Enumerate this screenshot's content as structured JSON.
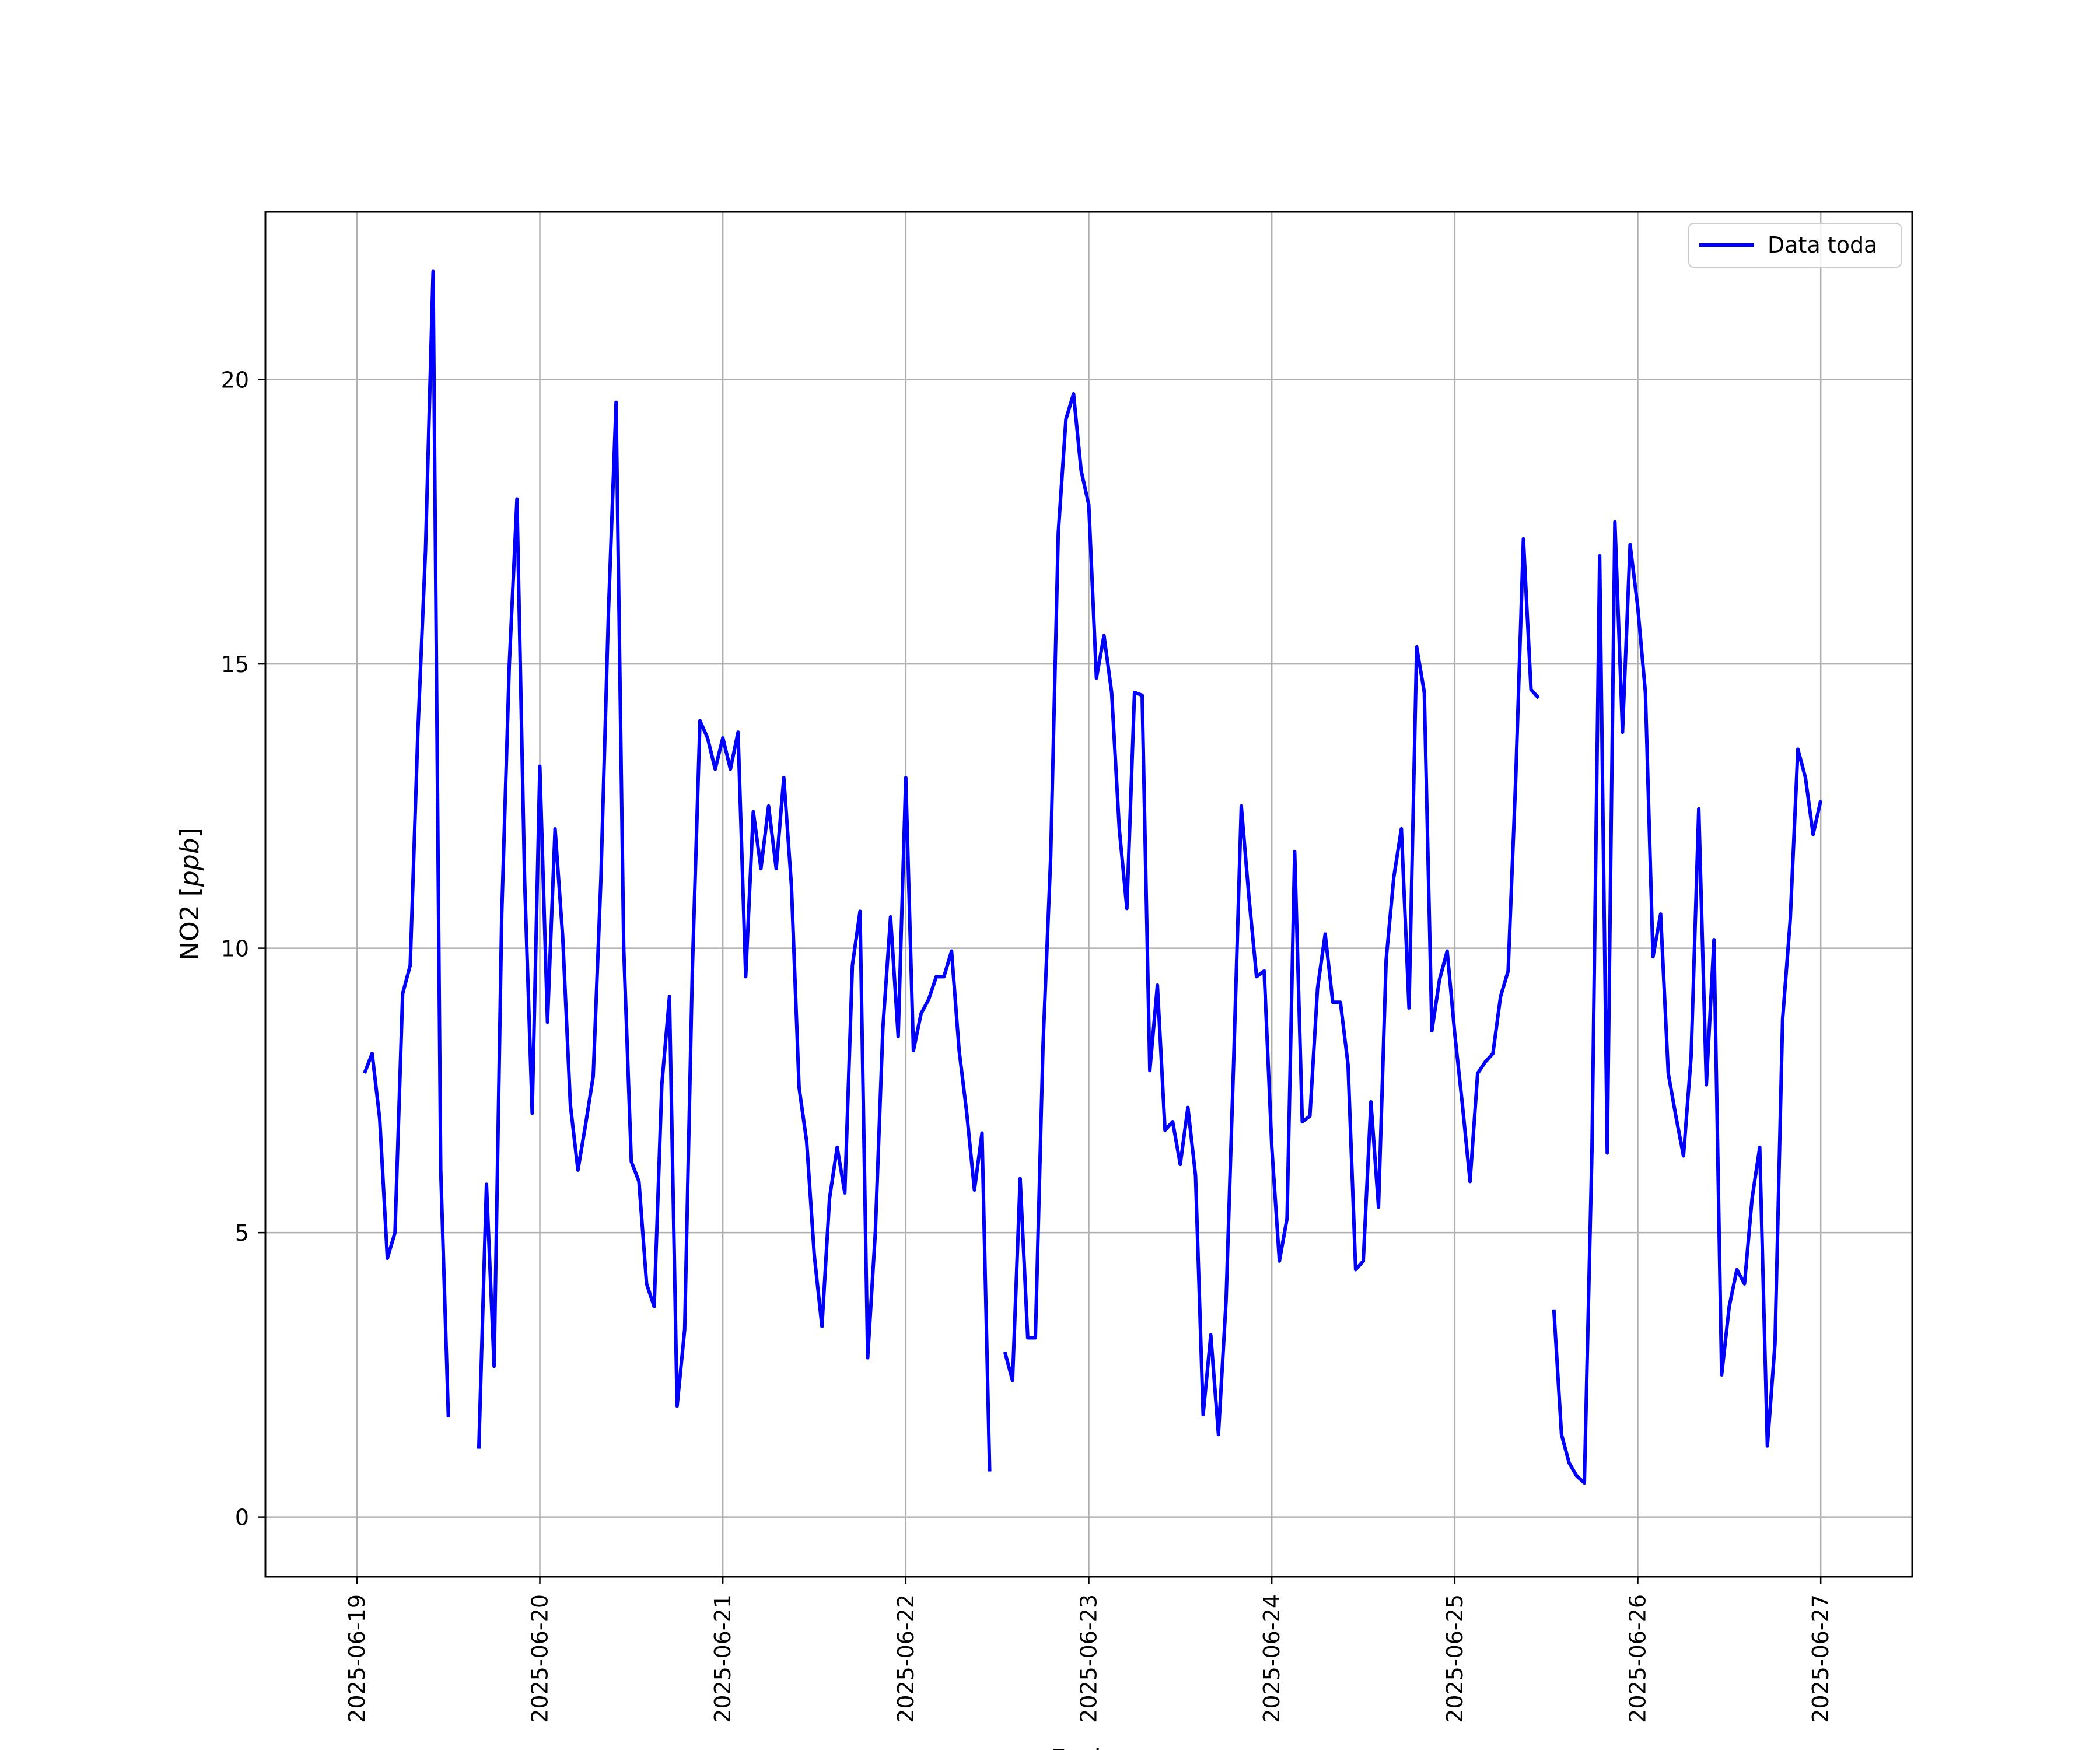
{
  "chart_data": {
    "type": "line",
    "xlabel": "Fecha",
    "ylabel_plain": "NO2 [",
    "ylabel_italic": "ppb",
    "ylabel_close": "]",
    "xlim": [
      "2025-06-18T12:00",
      "2025-06-27T12:00"
    ],
    "ylim": [
      -1.05,
      22.95
    ],
    "x_ticks": [
      "2025-06-19",
      "2025-06-20",
      "2025-06-21",
      "2025-06-22",
      "2025-06-23",
      "2025-06-24",
      "2025-06-25",
      "2025-06-26",
      "2025-06-27"
    ],
    "y_ticks": [
      0,
      5,
      10,
      15,
      20
    ],
    "grid": true,
    "legend_position": "top-right",
    "colors": {
      "line": "#0000ff",
      "grid": "#b0b0b0",
      "frame": "#000000"
    },
    "series": [
      {
        "name": "Data toda",
        "points": [
          [
            "2025-06-19T01:00",
            7.8
          ],
          [
            "2025-06-19T02:00",
            8.15
          ],
          [
            "2025-06-19T03:00",
            7.0
          ],
          [
            "2025-06-19T04:00",
            4.55
          ],
          [
            "2025-06-19T05:00",
            5.0
          ],
          [
            "2025-06-19T06:00",
            9.2
          ],
          [
            "2025-06-19T07:00",
            9.7
          ],
          [
            "2025-06-19T08:00",
            13.8
          ],
          [
            "2025-06-19T09:00",
            17.0
          ],
          [
            "2025-06-19T10:00",
            21.9
          ],
          [
            "2025-06-19T11:00",
            6.1
          ],
          [
            "2025-06-19T12:00",
            1.75
          ],
          [
            "2025-06-19T13:00",
            null
          ],
          [
            "2025-06-19T14:00",
            null
          ],
          [
            "2025-06-19T15:00",
            null
          ],
          [
            "2025-06-19T16:00",
            1.2
          ],
          [
            "2025-06-19T17:00",
            5.85
          ],
          [
            "2025-06-19T18:00",
            2.65
          ],
          [
            "2025-06-19T19:00",
            10.6
          ],
          [
            "2025-06-19T20:00",
            15.0
          ],
          [
            "2025-06-19T21:00",
            17.9
          ],
          [
            "2025-06-19T22:00",
            11.2
          ],
          [
            "2025-06-19T23:00",
            7.1
          ],
          [
            "2025-06-20T00:00",
            13.2
          ],
          [
            "2025-06-20T01:00",
            8.7
          ],
          [
            "2025-06-20T02:00",
            12.1
          ],
          [
            "2025-06-20T03:00",
            10.2
          ],
          [
            "2025-06-20T04:00",
            7.25
          ],
          [
            "2025-06-20T05:00",
            6.1
          ],
          [
            "2025-06-20T06:00",
            6.9
          ],
          [
            "2025-06-20T07:00",
            7.75
          ],
          [
            "2025-06-20T08:00",
            11.2
          ],
          [
            "2025-06-20T09:00",
            15.9
          ],
          [
            "2025-06-20T10:00",
            19.6
          ],
          [
            "2025-06-20T11:00",
            10.0
          ],
          [
            "2025-06-20T12:00",
            6.25
          ],
          [
            "2025-06-20T13:00",
            5.9
          ],
          [
            "2025-06-20T14:00",
            4.1
          ],
          [
            "2025-06-20T15:00",
            3.7
          ],
          [
            "2025-06-20T16:00",
            7.6
          ],
          [
            "2025-06-20T17:00",
            9.15
          ],
          [
            "2025-06-20T18:00",
            1.95
          ],
          [
            "2025-06-20T19:00",
            3.3
          ],
          [
            "2025-06-20T20:00",
            9.6
          ],
          [
            "2025-06-20T21:00",
            14.0
          ],
          [
            "2025-06-20T22:00",
            13.7
          ],
          [
            "2025-06-20T23:00",
            13.15
          ],
          [
            "2025-06-21T00:00",
            13.7
          ],
          [
            "2025-06-21T01:00",
            13.15
          ],
          [
            "2025-06-21T02:00",
            13.8
          ],
          [
            "2025-06-21T03:00",
            9.5
          ],
          [
            "2025-06-21T04:00",
            12.4
          ],
          [
            "2025-06-21T05:00",
            11.4
          ],
          [
            "2025-06-21T06:00",
            12.5
          ],
          [
            "2025-06-21T07:00",
            11.4
          ],
          [
            "2025-06-21T08:00",
            13.0
          ],
          [
            "2025-06-21T09:00",
            11.1
          ],
          [
            "2025-06-21T10:00",
            7.55
          ],
          [
            "2025-06-21T11:00",
            6.6
          ],
          [
            "2025-06-21T12:00",
            4.6
          ],
          [
            "2025-06-21T13:00",
            3.35
          ],
          [
            "2025-06-21T14:00",
            5.6
          ],
          [
            "2025-06-21T15:00",
            6.5
          ],
          [
            "2025-06-21T16:00",
            5.7
          ],
          [
            "2025-06-21T17:00",
            9.7
          ],
          [
            "2025-06-21T18:00",
            10.65
          ],
          [
            "2025-06-21T19:00",
            2.8
          ],
          [
            "2025-06-21T20:00",
            5.0
          ],
          [
            "2025-06-21T21:00",
            8.6
          ],
          [
            "2025-06-21T22:00",
            10.55
          ],
          [
            "2025-06-21T23:00",
            8.45
          ],
          [
            "2025-06-22T00:00",
            13.0
          ],
          [
            "2025-06-22T01:00",
            8.2
          ],
          [
            "2025-06-22T02:00",
            8.85
          ],
          [
            "2025-06-22T03:00",
            9.1
          ],
          [
            "2025-06-22T04:00",
            9.5
          ],
          [
            "2025-06-22T05:00",
            9.5
          ],
          [
            "2025-06-22T06:00",
            9.95
          ],
          [
            "2025-06-22T07:00",
            8.2
          ],
          [
            "2025-06-22T08:00",
            7.1
          ],
          [
            "2025-06-22T09:00",
            5.75
          ],
          [
            "2025-06-22T10:00",
            6.75
          ],
          [
            "2025-06-22T11:00",
            0.8
          ],
          [
            "2025-06-22T12:00",
            null
          ],
          [
            "2025-06-22T13:00",
            2.9
          ],
          [
            "2025-06-22T14:00",
            2.4
          ],
          [
            "2025-06-22T15:00",
            5.95
          ],
          [
            "2025-06-22T16:00",
            3.15
          ],
          [
            "2025-06-22T17:00",
            3.15
          ],
          [
            "2025-06-22T18:00",
            8.3
          ],
          [
            "2025-06-22T19:00",
            11.6
          ],
          [
            "2025-06-22T20:00",
            17.3
          ],
          [
            "2025-06-22T21:00",
            19.3
          ],
          [
            "2025-06-22T22:00",
            19.75
          ],
          [
            "2025-06-22T23:00",
            18.4
          ],
          [
            "2025-06-23T00:00",
            17.8
          ],
          [
            "2025-06-23T01:00",
            14.75
          ],
          [
            "2025-06-23T02:00",
            15.5
          ],
          [
            "2025-06-23T03:00",
            14.5
          ],
          [
            "2025-06-23T04:00",
            12.1
          ],
          [
            "2025-06-23T05:00",
            10.7
          ],
          [
            "2025-06-23T06:00",
            14.5
          ],
          [
            "2025-06-23T07:00",
            14.45
          ],
          [
            "2025-06-23T08:00",
            7.85
          ],
          [
            "2025-06-23T09:00",
            9.35
          ],
          [
            "2025-06-23T10:00",
            6.8
          ],
          [
            "2025-06-23T11:00",
            6.95
          ],
          [
            "2025-06-23T12:00",
            6.2
          ],
          [
            "2025-06-23T13:00",
            7.2
          ],
          [
            "2025-06-23T14:00",
            6.0
          ],
          [
            "2025-06-23T15:00",
            1.8
          ],
          [
            "2025-06-23T16:00",
            3.2
          ],
          [
            "2025-06-23T17:00",
            1.45
          ],
          [
            "2025-06-23T18:00",
            3.8
          ],
          [
            "2025-06-23T19:00",
            8.0
          ],
          [
            "2025-06-23T20:00",
            12.5
          ],
          [
            "2025-06-23T21:00",
            10.9
          ],
          [
            "2025-06-23T22:00",
            9.5
          ],
          [
            "2025-06-23T23:00",
            9.6
          ],
          [
            "2025-06-24T00:00",
            6.5
          ],
          [
            "2025-06-24T01:00",
            4.5
          ],
          [
            "2025-06-24T02:00",
            5.25
          ],
          [
            "2025-06-24T03:00",
            11.7
          ],
          [
            "2025-06-24T04:00",
            6.95
          ],
          [
            "2025-06-24T05:00",
            7.05
          ],
          [
            "2025-06-24T06:00",
            9.3
          ],
          [
            "2025-06-24T07:00",
            10.25
          ],
          [
            "2025-06-24T08:00",
            9.05
          ],
          [
            "2025-06-24T09:00",
            9.05
          ],
          [
            "2025-06-24T10:00",
            7.95
          ],
          [
            "2025-06-24T11:00",
            4.35
          ],
          [
            "2025-06-24T12:00",
            4.5
          ],
          [
            "2025-06-24T13:00",
            7.3
          ],
          [
            "2025-06-24T14:00",
            5.45
          ],
          [
            "2025-06-24T15:00",
            9.8
          ],
          [
            "2025-06-24T16:00",
            11.25
          ],
          [
            "2025-06-24T17:00",
            12.1
          ],
          [
            "2025-06-24T18:00",
            8.95
          ],
          [
            "2025-06-24T19:00",
            15.3
          ],
          [
            "2025-06-24T20:00",
            14.5
          ],
          [
            "2025-06-24T21:00",
            8.55
          ],
          [
            "2025-06-24T22:00",
            9.45
          ],
          [
            "2025-06-24T23:00",
            9.95
          ],
          [
            "2025-06-25T00:00",
            8.5
          ],
          [
            "2025-06-25T01:00",
            7.25
          ],
          [
            "2025-06-25T02:00",
            5.9
          ],
          [
            "2025-06-25T03:00",
            7.8
          ],
          [
            "2025-06-25T04:00",
            8.0
          ],
          [
            "2025-06-25T05:00",
            8.15
          ],
          [
            "2025-06-25T06:00",
            9.15
          ],
          [
            "2025-06-25T07:00",
            9.6
          ],
          [
            "2025-06-25T08:00",
            13.0
          ],
          [
            "2025-06-25T09:00",
            17.2
          ],
          [
            "2025-06-25T10:00",
            14.55
          ],
          [
            "2025-06-25T11:00",
            14.4
          ],
          [
            "2025-06-25T12:00",
            null
          ],
          [
            "2025-06-25T13:00",
            3.65
          ],
          [
            "2025-06-25T14:00",
            1.45
          ],
          [
            "2025-06-25T15:00",
            0.95
          ],
          [
            "2025-06-25T16:00",
            0.72
          ],
          [
            "2025-06-25T17:00",
            0.6
          ],
          [
            "2025-06-25T18:00",
            6.5
          ],
          [
            "2025-06-25T19:00",
            16.9
          ],
          [
            "2025-06-25T20:00",
            6.4
          ],
          [
            "2025-06-25T21:00",
            17.5
          ],
          [
            "2025-06-25T22:00",
            13.8
          ],
          [
            "2025-06-25T23:00",
            17.1
          ],
          [
            "2025-06-26T00:00",
            16.0
          ],
          [
            "2025-06-26T01:00",
            14.5
          ],
          [
            "2025-06-26T02:00",
            9.85
          ],
          [
            "2025-06-26T03:00",
            10.6
          ],
          [
            "2025-06-26T04:00",
            7.8
          ],
          [
            "2025-06-26T05:00",
            7.05
          ],
          [
            "2025-06-26T06:00",
            6.35
          ],
          [
            "2025-06-26T07:00",
            8.1
          ],
          [
            "2025-06-26T08:00",
            12.45
          ],
          [
            "2025-06-26T09:00",
            7.6
          ],
          [
            "2025-06-26T10:00",
            10.15
          ],
          [
            "2025-06-26T11:00",
            2.5
          ],
          [
            "2025-06-26T12:00",
            3.7
          ],
          [
            "2025-06-26T13:00",
            4.35
          ],
          [
            "2025-06-26T14:00",
            4.1
          ],
          [
            "2025-06-26T15:00",
            5.6
          ],
          [
            "2025-06-26T16:00",
            6.5
          ],
          [
            "2025-06-26T17:00",
            1.25
          ],
          [
            "2025-06-26T18:00",
            3.05
          ],
          [
            "2025-06-26T19:00",
            8.75
          ],
          [
            "2025-06-26T20:00",
            10.5
          ],
          [
            "2025-06-26T21:00",
            13.5
          ],
          [
            "2025-06-26T22:00",
            13.0
          ],
          [
            "2025-06-26T23:00",
            12.0
          ],
          [
            "2025-06-27T00:00",
            12.6
          ]
        ]
      }
    ]
  }
}
